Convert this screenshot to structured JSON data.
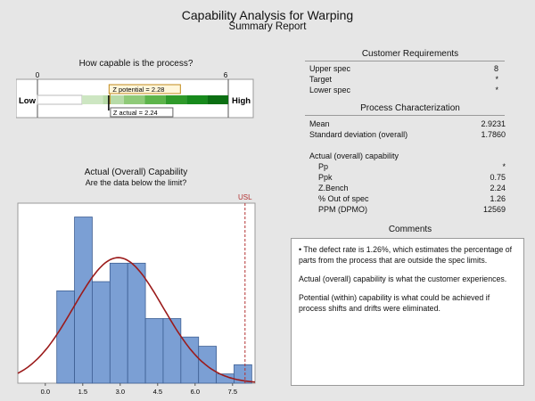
{
  "title": "Capability Analysis for Warping",
  "subtitle": "Summary Report",
  "gauge": {
    "heading": "How capable is the process?",
    "axis_min_label": "0",
    "axis_max_label": "6",
    "low_label": "Low",
    "high_label": "High",
    "z_potential_label": "Z potential = 2.28",
    "z_actual_label": "Z actual = 2.24",
    "z_potential": 2.28,
    "z_actual": 2.24,
    "scale_min": 0,
    "scale_max": 6,
    "band_colors": [
      "#cde6c2",
      "#b7dba8",
      "#8fca78",
      "#5db44a",
      "#2f9a2a",
      "#178a1c",
      "#0b6e12"
    ]
  },
  "customer_requirements": {
    "heading": "Customer Requirements",
    "rows": [
      {
        "label": "Upper spec",
        "value": "8"
      },
      {
        "label": "Target",
        "value": "*"
      },
      {
        "label": "Lower spec",
        "value": "*"
      }
    ]
  },
  "process_characterization": {
    "heading": "Process Characterization",
    "mean_label": "Mean",
    "mean_value": "2.9231",
    "sd_label": "Standard deviation (overall)",
    "sd_value": "1.7860",
    "capability_heading": "Actual (overall) capability",
    "capability_rows": [
      {
        "label": "Pp",
        "value": "*"
      },
      {
        "label": "Ppk",
        "value": "0.75"
      },
      {
        "label": "Z.Bench",
        "value": "2.24"
      },
      {
        "label": "% Out of spec",
        "value": "1.26"
      },
      {
        "label": "PPM (DPMO)",
        "value": "12569"
      }
    ]
  },
  "comments": {
    "heading": "Comments",
    "bullet": "The defect rate is 1.26%, which estimates the percentage of parts from the process that are outside the spec limits.",
    "p2": "Actual (overall) capability is what the customer experiences.",
    "p3": "Potential (within) capability is what could be achieved if process shifts and drifts were eliminated."
  },
  "chart_data": {
    "type": "bar",
    "title": "Actual (Overall) Capability",
    "subtitle": "Are the data below the limit?",
    "bin_edges": [
      0.46,
      1.17,
      1.88,
      2.59,
      3.3,
      4.01,
      4.72,
      5.43,
      6.14,
      6.85,
      7.56,
      8.27
    ],
    "values": [
      10,
      18,
      11,
      13,
      13,
      7,
      7,
      5,
      4,
      1,
      2
    ],
    "xlim": [
      -1.1,
      8.4
    ],
    "ylim": [
      0,
      19.5
    ],
    "tick_labels": [
      "0.0",
      "1.5",
      "3.0",
      "4.5",
      "6.0",
      "7.5"
    ],
    "tick_values": [
      0,
      1.5,
      3,
      4.5,
      6,
      7.5
    ],
    "usl_label": "USL",
    "usl": 8,
    "normal_curve": {
      "mean": 2.9231,
      "sd": 1.786,
      "scale": 13.6
    },
    "bar_color": "#7b9fd4",
    "curve_color": "#9b1b1b"
  }
}
